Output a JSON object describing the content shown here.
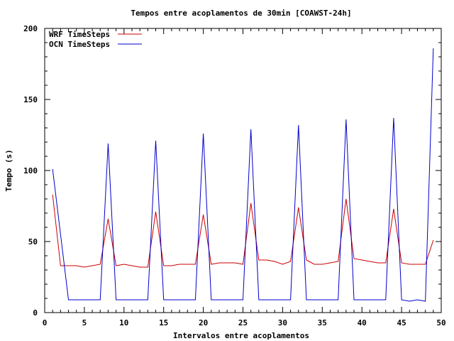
{
  "chart_data": {
    "type": "line",
    "title": "Tempos entre acoplamentos de 30min [COAWST-24h]",
    "xlabel": "Intervalos entre acoplamentos",
    "ylabel": "Tempo (s)",
    "xlim": [
      0,
      50
    ],
    "ylim": [
      0,
      200
    ],
    "xticks": [
      0,
      5,
      10,
      15,
      20,
      25,
      30,
      35,
      40,
      45,
      50
    ],
    "yticks": [
      0,
      50,
      100,
      150,
      200
    ],
    "grid": false,
    "legend_position": "top-left",
    "x": [
      1,
      2,
      3,
      4,
      5,
      6,
      7,
      8,
      9,
      10,
      11,
      12,
      13,
      14,
      15,
      16,
      17,
      18,
      19,
      20,
      21,
      22,
      23,
      24,
      25,
      26,
      27,
      28,
      29,
      30,
      31,
      32,
      33,
      34,
      35,
      36,
      37,
      38,
      39,
      40,
      41,
      42,
      43,
      44,
      45,
      46,
      47,
      48,
      49
    ],
    "series": [
      {
        "name": "WRF TimeSteps",
        "color": "#cc0000",
        "values": [
          83,
          33,
          33,
          33,
          32,
          33,
          34,
          66,
          33,
          34,
          33,
          32,
          32,
          71,
          33,
          33,
          34,
          34,
          34,
          69,
          34,
          35,
          35,
          35,
          34,
          77,
          37,
          37,
          36,
          34,
          36,
          74,
          37,
          34,
          34,
          35,
          36,
          80,
          38,
          37,
          36,
          35,
          35,
          73,
          35,
          34,
          34,
          34,
          51
        ]
      },
      {
        "name": "OCN TimeSteps",
        "color": "#0000cc",
        "values": [
          101,
          55,
          9,
          9,
          9,
          9,
          9,
          119,
          9,
          9,
          9,
          9,
          9,
          121,
          9,
          9,
          9,
          9,
          9,
          126,
          9,
          9,
          9,
          9,
          9,
          129,
          9,
          9,
          9,
          9,
          9,
          132,
          9,
          9,
          9,
          9,
          9,
          136,
          9,
          9,
          9,
          9,
          9,
          137,
          9,
          8,
          9,
          8,
          186
        ]
      }
    ]
  }
}
